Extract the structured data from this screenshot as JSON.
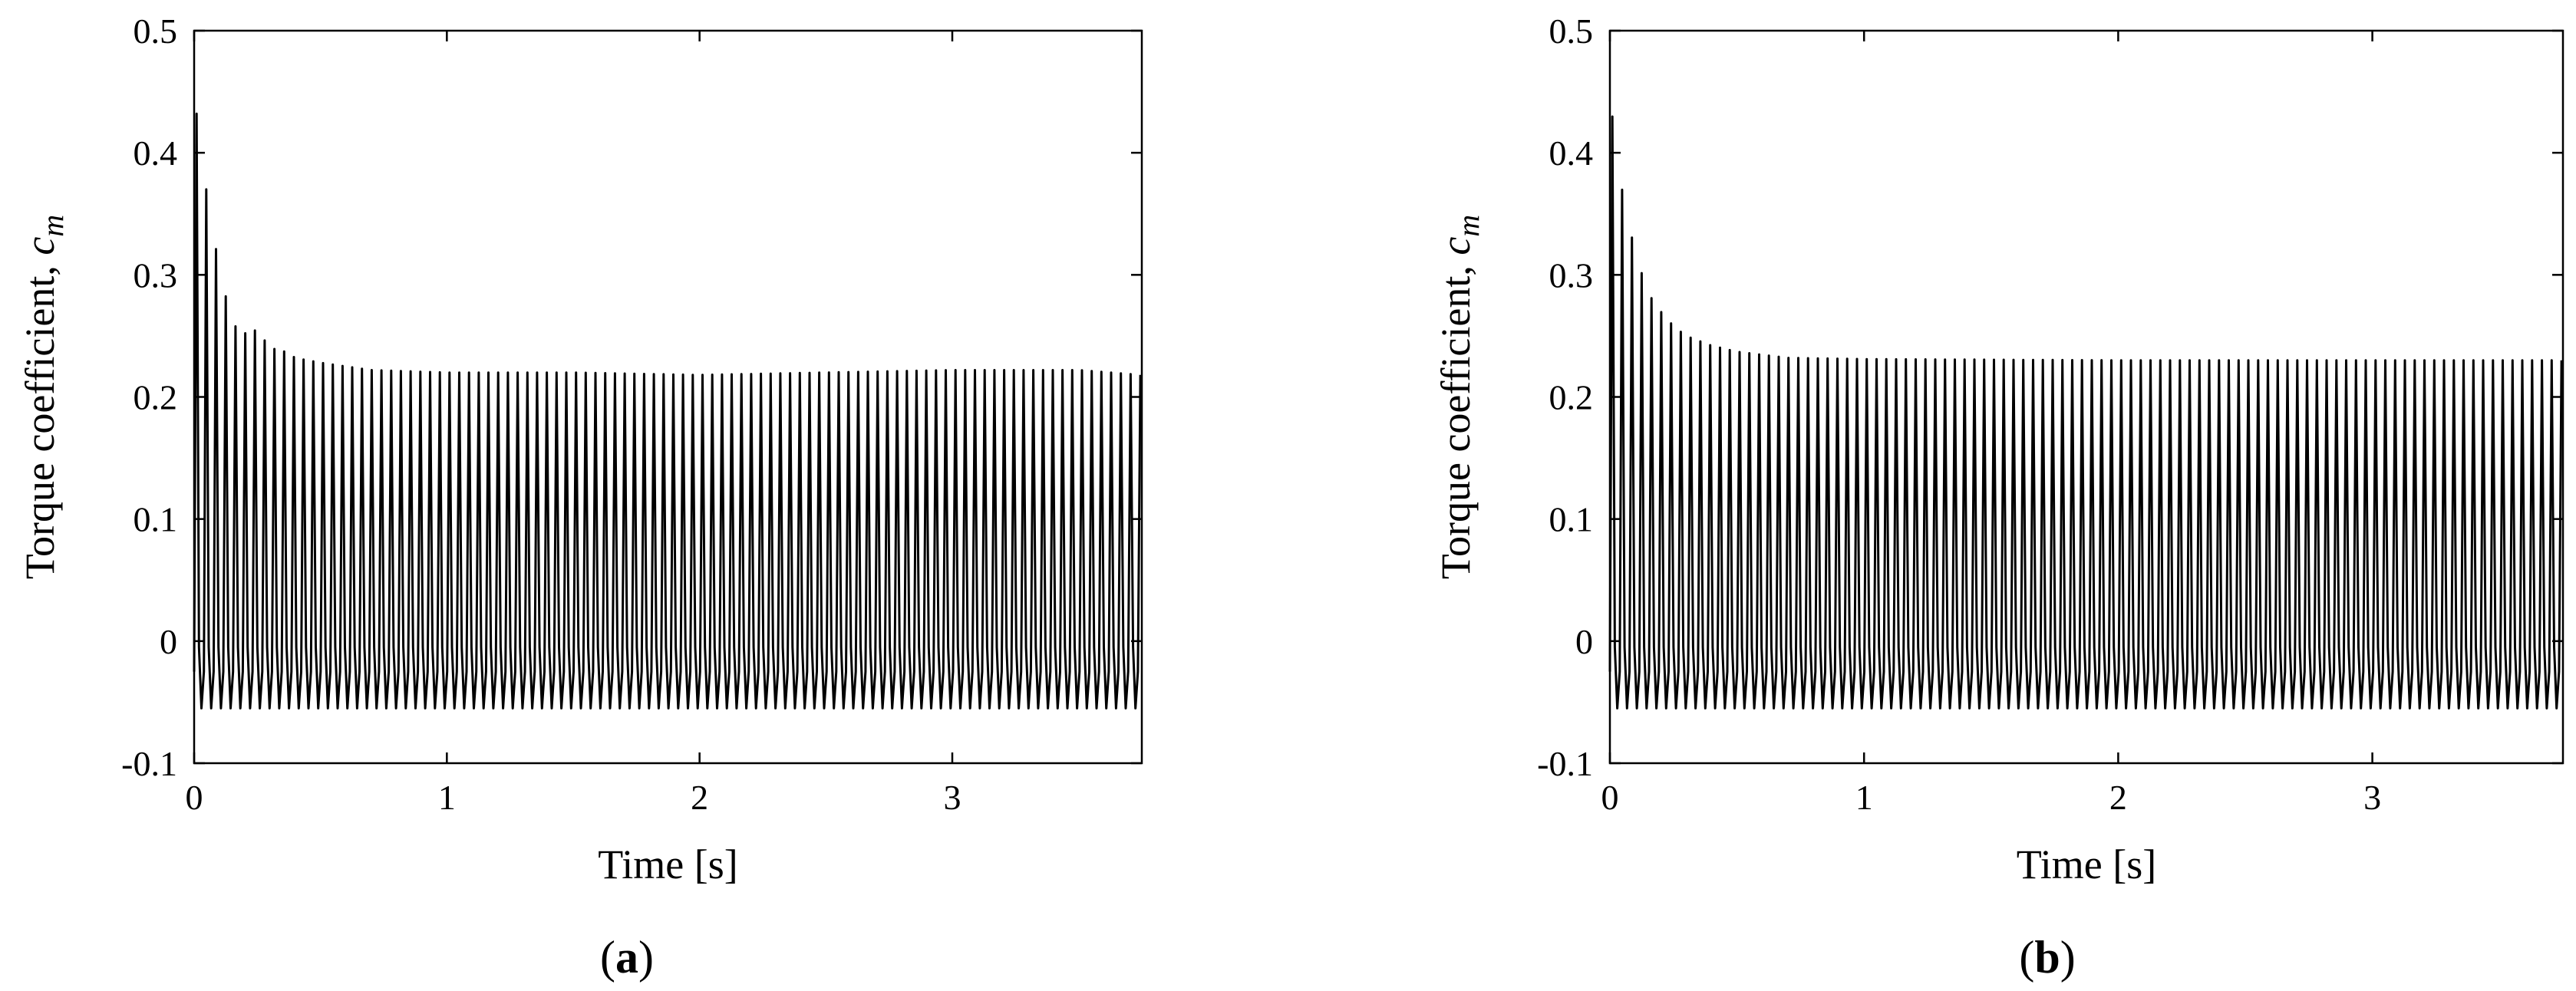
{
  "chart_data": [
    {
      "type": "line",
      "panel_label": "a",
      "xlabel": "Time [s]",
      "ylabel": "Torque coefficient, ",
      "ylabel_symbol": "c",
      "ylabel_subscript": "m",
      "xlim": [
        0,
        3.75
      ],
      "ylim": [
        -0.1,
        0.5
      ],
      "x_ticks": [
        0,
        1,
        2,
        3
      ],
      "y_ticks": [
        -0.1,
        0,
        0.1,
        0.2,
        0.3,
        0.4,
        0.5
      ],
      "y_tick_labels": [
        "-0.1",
        "0",
        "0.1",
        "0.2",
        "0.3",
        "0.4",
        "0.5"
      ],
      "x_tick_labels": [
        "0",
        "1",
        "2",
        "3"
      ],
      "grid": false,
      "oscillation_period_s": 0.0385,
      "minimum": -0.055,
      "series": [
        {
          "color": "#000000",
          "peak_envelope": {
            "t": [
              0.0,
              0.02,
              0.05,
              0.1,
              0.15,
              0.2,
              0.25,
              0.3,
              0.35,
              0.4,
              0.5,
              0.7,
              1.0,
              1.5,
              2.0,
              2.5,
              3.0,
              3.5,
              3.75
            ],
            "c_m": [
              0.42,
              0.445,
              0.365,
              0.305,
              0.26,
              0.252,
              0.255,
              0.24,
              0.238,
              0.232,
              0.228,
              0.222,
              0.22,
              0.22,
              0.218,
              0.22,
              0.222,
              0.222,
              0.218
            ]
          }
        }
      ]
    },
    {
      "type": "line",
      "panel_label": "b",
      "xlabel": "Time [s]",
      "ylabel": "Torque coefficient, ",
      "ylabel_symbol": "c",
      "ylabel_subscript": "m",
      "xlim": [
        0,
        3.75
      ],
      "ylim": [
        -0.1,
        0.5
      ],
      "x_ticks": [
        0,
        1,
        2,
        3
      ],
      "y_ticks": [
        -0.1,
        0,
        0.1,
        0.2,
        0.3,
        0.4,
        0.5
      ],
      "y_tick_labels": [
        "-0.1",
        "0",
        "0.1",
        "0.2",
        "0.3",
        "0.4",
        "0.5"
      ],
      "x_tick_labels": [
        "0",
        "1",
        "2",
        "3"
      ],
      "grid": false,
      "oscillation_period_s": 0.0385,
      "minimum": -0.055,
      "series": [
        {
          "color": "#000000",
          "peak_envelope": {
            "t": [
              0.0,
              0.02,
              0.05,
              0.1,
              0.15,
              0.2,
              0.25,
              0.3,
              0.4,
              0.5,
              0.7,
              1.0,
              2.0,
              3.0,
              3.75
            ],
            "c_m": [
              0.42,
              0.44,
              0.365,
              0.318,
              0.285,
              0.27,
              0.258,
              0.25,
              0.242,
              0.237,
              0.232,
              0.231,
              0.23,
              0.23,
              0.23
            ]
          }
        }
      ]
    }
  ]
}
